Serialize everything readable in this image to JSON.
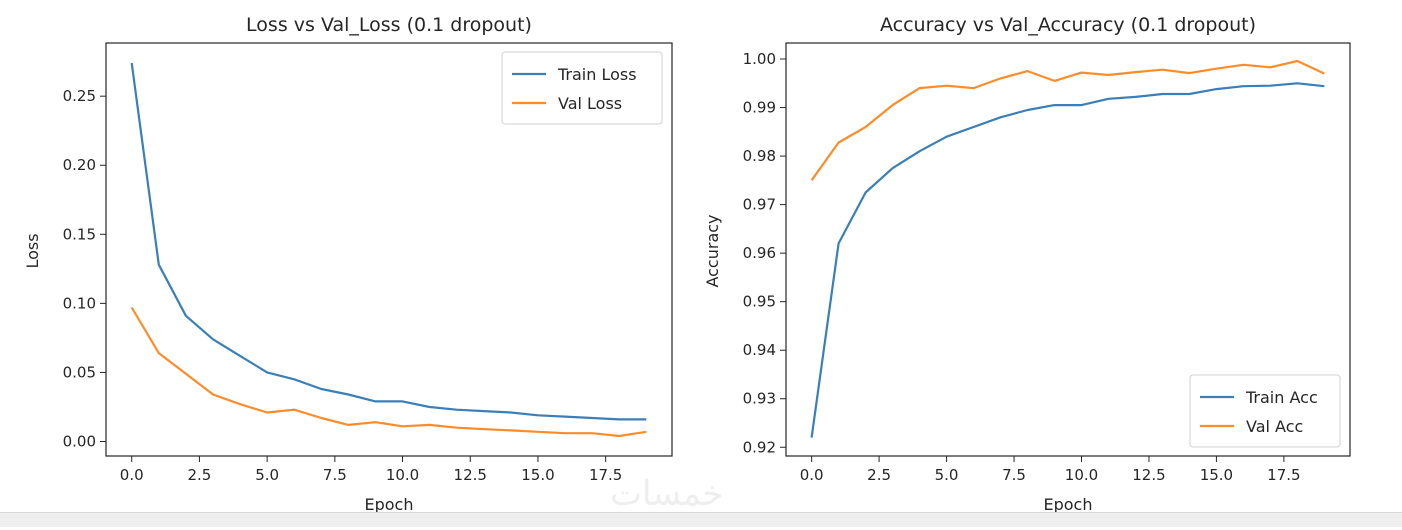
{
  "watermark": "خمسات",
  "colors": {
    "train": "#3a7fb8",
    "val": "#ff8c28",
    "axis": "#262626"
  },
  "chart_data": [
    {
      "type": "line",
      "title": "Loss vs Val_Loss (0.1 dropout)",
      "xlabel": "Epoch",
      "ylabel": "Loss",
      "xlim": [
        -0.95,
        19.95
      ],
      "ylim": [
        -0.0105,
        0.2885
      ],
      "xticks": [
        0,
        2.5,
        5,
        7.5,
        10,
        12.5,
        15,
        17.5
      ],
      "xtick_labels": [
        "0.0",
        "2.5",
        "5.0",
        "7.5",
        "10.0",
        "12.5",
        "15.0",
        "17.5"
      ],
      "yticks": [
        0.0,
        0.05,
        0.1,
        0.15,
        0.2,
        0.25
      ],
      "ytick_labels": [
        "0.00",
        "0.05",
        "0.10",
        "0.15",
        "0.20",
        "0.25"
      ],
      "legend_position": "top-right",
      "x": [
        0,
        1,
        2,
        3,
        4,
        5,
        6,
        7,
        8,
        9,
        10,
        11,
        12,
        13,
        14,
        15,
        16,
        17,
        18,
        19
      ],
      "series": [
        {
          "name": "Train Loss",
          "color": "#3a7fb8",
          "values": [
            0.274,
            0.128,
            0.091,
            0.074,
            0.062,
            0.05,
            0.045,
            0.038,
            0.034,
            0.029,
            0.029,
            0.025,
            0.023,
            0.022,
            0.021,
            0.019,
            0.018,
            0.017,
            0.016,
            0.016
          ]
        },
        {
          "name": "Val Loss",
          "color": "#ff8c28",
          "values": [
            0.097,
            0.064,
            0.049,
            0.034,
            0.027,
            0.021,
            0.023,
            0.017,
            0.012,
            0.014,
            0.011,
            0.012,
            0.01,
            0.009,
            0.008,
            0.007,
            0.006,
            0.006,
            0.004,
            0.007
          ]
        }
      ]
    },
    {
      "type": "line",
      "title": "Accuracy vs Val_Accuracy (0.1 dropout)",
      "xlabel": "Epoch",
      "ylabel": "Accuracy",
      "xlim": [
        -0.95,
        19.95
      ],
      "ylim": [
        0.9182,
        1.0033
      ],
      "xticks": [
        0,
        2.5,
        5,
        7.5,
        10,
        12.5,
        15,
        17.5
      ],
      "xtick_labels": [
        "0.0",
        "2.5",
        "5.0",
        "7.5",
        "10.0",
        "12.5",
        "15.0",
        "17.5"
      ],
      "yticks": [
        0.92,
        0.93,
        0.94,
        0.95,
        0.96,
        0.97,
        0.98,
        0.99,
        1.0
      ],
      "ytick_labels": [
        "0.92",
        "0.93",
        "0.94",
        "0.95",
        "0.96",
        "0.97",
        "0.98",
        "0.99",
        "1.00"
      ],
      "legend_position": "bottom-right",
      "x": [
        0,
        1,
        2,
        3,
        4,
        5,
        6,
        7,
        8,
        9,
        10,
        11,
        12,
        13,
        14,
        15,
        16,
        17,
        18,
        19
      ],
      "series": [
        {
          "name": "Train Acc",
          "color": "#3a7fb8",
          "values": [
            0.922,
            0.962,
            0.9725,
            0.9775,
            0.981,
            0.984,
            0.986,
            0.988,
            0.9895,
            0.9905,
            0.9905,
            0.9918,
            0.9922,
            0.9928,
            0.9928,
            0.9938,
            0.9944,
            0.9945,
            0.995,
            0.9944
          ]
        },
        {
          "name": "Val Acc",
          "color": "#ff8c28",
          "values": [
            0.975,
            0.9828,
            0.986,
            0.9905,
            0.994,
            0.9945,
            0.994,
            0.996,
            0.9975,
            0.9955,
            0.9972,
            0.9967,
            0.9973,
            0.9978,
            0.9971,
            0.998,
            0.9988,
            0.9983,
            0.9996,
            0.997
          ]
        }
      ]
    }
  ]
}
